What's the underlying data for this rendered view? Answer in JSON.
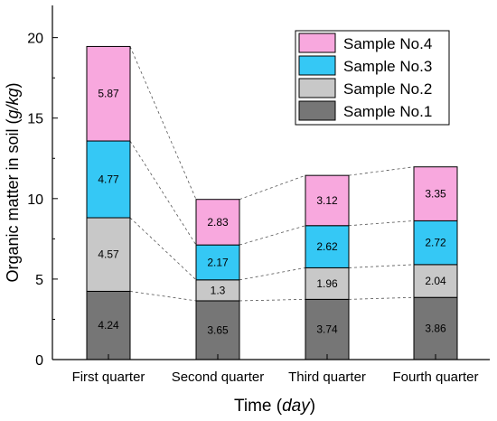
{
  "chart_data": {
    "type": "bar",
    "stacked": true,
    "categories": [
      "First quarter",
      "Second quarter",
      "Third quarter",
      "Fourth quarter"
    ],
    "series": [
      {
        "name": "Sample No.1",
        "values": [
          4.24,
          3.65,
          3.74,
          3.86
        ],
        "color": "#767676"
      },
      {
        "name": "Sample No.2",
        "values": [
          4.57,
          1.3,
          1.96,
          2.04
        ],
        "color": "#c8c8c8"
      },
      {
        "name": "Sample No.3",
        "values": [
          4.77,
          2.17,
          2.62,
          2.72
        ],
        "color": "#35c8f5"
      },
      {
        "name": "Sample No.4",
        "values": [
          5.87,
          2.83,
          3.12,
          3.35
        ],
        "color": "#f8a8de"
      }
    ],
    "xlabel": {
      "main": "Time",
      "unit": "day"
    },
    "ylabel": {
      "main": "Organic matter in soil",
      "unit": "g/kg"
    },
    "ylim": [
      0,
      22
    ],
    "yticks": [
      0,
      5,
      10,
      15,
      20
    ],
    "legend_position": "top-right",
    "connector_lines": "dashed",
    "grid": false
  }
}
